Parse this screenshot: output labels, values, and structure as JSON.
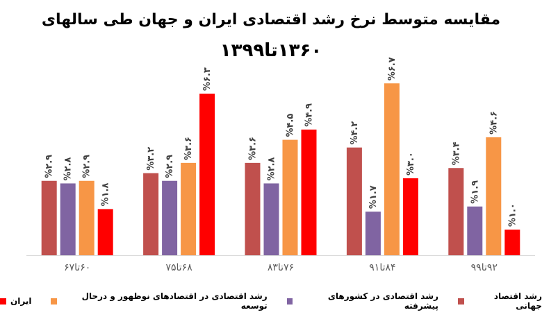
{
  "chart_data": {
    "type": "bar",
    "title": "مقایسه متوسط نرخ رشد اقتصادی ایران و جهان طی سالهای",
    "subtitle": "۱۳۶۰تا۱۳۹۹",
    "categories": [
      "۶۰تا۶۷",
      "۶۸تا۷۵",
      "۷۶تا۸۳",
      "۸۴تا۹۱",
      "۹۲تا۹۹"
    ],
    "series": [
      {
        "name": "رشد اقتصاد جهانی",
        "color": "#C0504D",
        "values": [
          2.9,
          3.2,
          3.6,
          4.2,
          3.4
        ],
        "labels": [
          "%۲.۹",
          "%۳.۲",
          "%۳.۶",
          "%۴.۲",
          "%۳.۴"
        ]
      },
      {
        "name": "رشد اقتصادی در کشورهای پیشرفته",
        "color": "#8064A2",
        "values": [
          2.8,
          2.9,
          2.8,
          1.7,
          1.9
        ],
        "labels": [
          "%۲.۸",
          "%۲.۹",
          "%۲.۸",
          "%۱.۷",
          "%۱.۹"
        ]
      },
      {
        "name": "رشد اقتصادی در اقتصادهای نوظهور و درحال توسعه",
        "color": "#F79646",
        "values": [
          2.9,
          3.6,
          4.5,
          6.7,
          4.6
        ],
        "labels": [
          "%۲.۹",
          "%۳.۶",
          "%۴.۵",
          "%۶.۷",
          "%۴.۶"
        ]
      },
      {
        "name": "ایران",
        "color": "#FF0000",
        "values": [
          1.8,
          6.3,
          4.9,
          3.0,
          1.0
        ],
        "labels": [
          "%۱.۸",
          "%۶.۳",
          "%۴.۹",
          "%۳.۰",
          "%۱.۰"
        ]
      }
    ],
    "ylim": [
      0,
      7.3
    ],
    "grid": false,
    "legend_position": "bottom"
  }
}
